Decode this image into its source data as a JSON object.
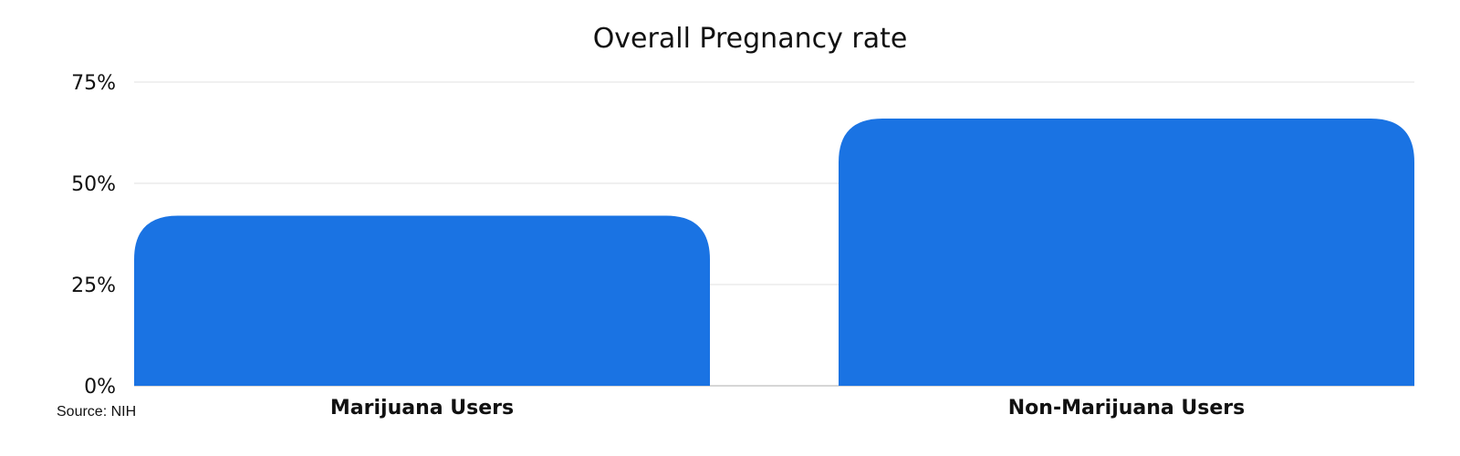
{
  "chart_data": {
    "type": "bar",
    "title": "Overall Pregnancy rate",
    "categories": [
      "Marijuana Users",
      "Non-Marijuana Users"
    ],
    "values": [
      42,
      66
    ],
    "ylim": [
      0,
      75
    ],
    "yticks": [
      0,
      25,
      50,
      75
    ],
    "ytick_labels": [
      "0%",
      "25%",
      "50%",
      "75%"
    ],
    "grid": true,
    "bar_color": "#1a73e3",
    "gridline_color": "#e2e2e2",
    "axis_color": "#c8c8c8"
  },
  "source": "Source: NIH"
}
